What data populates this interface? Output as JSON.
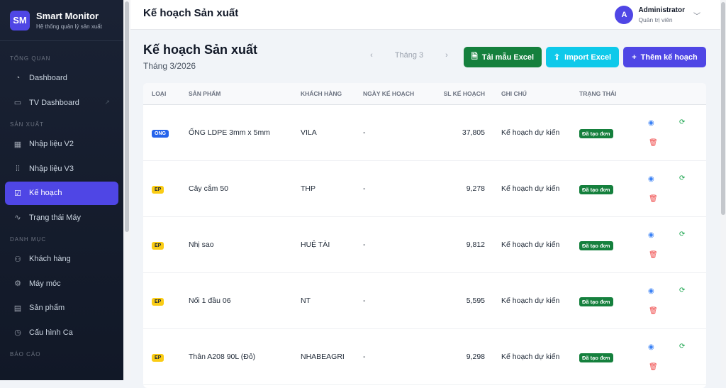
{
  "sidebar": {
    "logo": "SM",
    "app_name": "Smart Monitor",
    "tagline": "Hệ thống quản lý sản xuất",
    "sections": [
      {
        "title": "TỔNG QUAN",
        "items": [
          {
            "label": "Dashboard",
            "icon": "gauge-icon"
          },
          {
            "label": "TV Dashboard",
            "icon": "monitor-icon",
            "external": true
          }
        ]
      },
      {
        "title": "SẢN XUẤT",
        "items": [
          {
            "label": "Nhập liệu V2",
            "icon": "calendar-icon"
          },
          {
            "label": "Nhập liệu V3",
            "icon": "grid-icon"
          },
          {
            "label": "Kế hoạch",
            "icon": "calendar-check-icon",
            "active": true
          },
          {
            "label": "Trạng thái Máy",
            "icon": "activity-icon"
          }
        ]
      },
      {
        "title": "DANH MỤC",
        "items": [
          {
            "label": "Khách hàng",
            "icon": "users-icon"
          },
          {
            "label": "Máy móc",
            "icon": "gear-icon"
          },
          {
            "label": "Sản phẩm",
            "icon": "archive-icon"
          },
          {
            "label": "Cấu hình Ca",
            "icon": "clock-icon"
          }
        ]
      },
      {
        "title": "BÁO CÁO",
        "items": []
      }
    ]
  },
  "header": {
    "title": "Kế hoạch Sản xuất",
    "user_initial": "A",
    "user_name": "Administrator",
    "user_role": "Quản trị viên"
  },
  "page": {
    "title": "Kế hoạch Sản xuất",
    "subtitle": "Tháng 3/2026",
    "month": "Tháng 3",
    "buttons": {
      "template": "Tải mẫu Excel",
      "import": "Import Excel",
      "add": "Thêm kế hoạch"
    },
    "colors": {
      "template": "#15803d",
      "import": "#0ec9ea",
      "add": "#4f46e5"
    }
  },
  "table": {
    "columns": [
      "LOẠI",
      "SẢN PHẨM",
      "KHÁCH HÀNG",
      "NGÀY KẾ HOẠCH",
      "SL KẾ HOẠCH",
      "GHI CHÚ",
      "TRẠNG THÁI"
    ],
    "rows": [
      {
        "type": "ONG",
        "product": "ỐNG LDPE 3mm x 5mm",
        "customer": "VILA",
        "date": "-",
        "qty": "37,805",
        "note": "Kế hoạch dự kiến",
        "status": "Đã tạo đơn"
      },
      {
        "type": "EP",
        "product": "Cây cắm 50",
        "customer": "THP",
        "date": "-",
        "qty": "9,278",
        "note": "Kế hoạch dự kiến",
        "status": "Đã tạo đơn"
      },
      {
        "type": "EP",
        "product": "Nhị sao",
        "customer": "HUỆ TÀI",
        "date": "-",
        "qty": "9,812",
        "note": "Kế hoạch dự kiến",
        "status": "Đã tạo đơn"
      },
      {
        "type": "EP",
        "product": "Nối 1 đầu 06",
        "customer": "NT",
        "date": "-",
        "qty": "5,595",
        "note": "Kế hoạch dự kiến",
        "status": "Đã tạo đơn"
      },
      {
        "type": "EP",
        "product": "Thân A208 90L (Đỏ)",
        "customer": "NHABEAGRI",
        "date": "-",
        "qty": "9,298",
        "note": "Kế hoạch dự kiến",
        "status": "Đã tạo đơn"
      }
    ]
  }
}
